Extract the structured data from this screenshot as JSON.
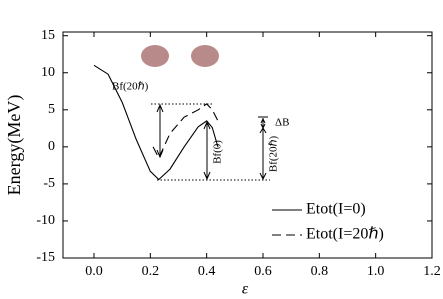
{
  "chart_data": {
    "type": "line",
    "y_label": "Energy(MeV)",
    "x_label": "ε",
    "xlim": [
      -0.11,
      1.2
    ],
    "xticks": [
      {
        "value": 0,
        "label": "0.0"
      },
      0.2,
      0.4,
      0.6,
      0.8,
      {
        "value": 1,
        "label": "1.0"
      },
      1.2
    ],
    "ylim": [
      -15,
      15.5
    ],
    "yticks": [
      -15,
      -10,
      -5,
      0,
      5,
      10,
      15
    ],
    "series": [
      {
        "name": "Etot(I=0)",
        "color": "#000",
        "dash": false,
        "x": [
          0,
          0.05,
          0.1,
          0.15,
          0.2,
          0.23,
          0.27,
          0.32,
          0.37,
          0.4,
          0.42,
          0.44
        ],
        "values": [
          11,
          9.8,
          6,
          1,
          -3.3,
          -4.4,
          -3,
          0,
          2.7,
          3.5,
          2.6,
          0
        ]
      },
      {
        "name": "Etot(I=20ℏ)",
        "color": "#000",
        "dash": true,
        "x": [
          0.21,
          0.23,
          0.27,
          0.32,
          0.37,
          0.4,
          0.42,
          0.44
        ],
        "values": [
          0,
          -1.5,
          1.8,
          4,
          5,
          5.8,
          5,
          3.5
        ]
      }
    ],
    "annotations": [
      "Bf(20ℏ)",
      "Bf(0)",
      "ΔB",
      "Bf(20ℏ)"
    ]
  }
}
